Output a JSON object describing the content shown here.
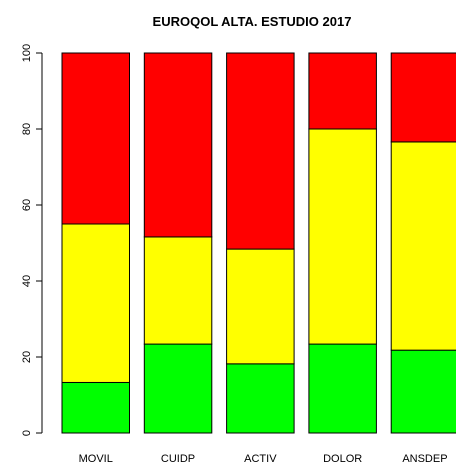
{
  "chart_data": {
    "type": "stacked_bar",
    "title": "EUROQOL ALTA. ESTUDIO 2017",
    "categories": [
      "MOVIL",
      "CUIDP",
      "ACTIV",
      "DOLOR",
      "ANSDEP"
    ],
    "series": [
      {
        "color": "#00ff00",
        "values": [
          13.3,
          23.4,
          18.2,
          23.4,
          21.8
        ]
      },
      {
        "color": "#ffff00",
        "values": [
          41.7,
          28.2,
          30.2,
          56.6,
          54.8
        ]
      },
      {
        "color": "#ff0000",
        "values": [
          45.0,
          48.4,
          51.6,
          20.0,
          23.4
        ]
      }
    ],
    "ylim": [
      0,
      100
    ],
    "yticks": [
      0,
      20,
      40,
      60,
      80,
      100
    ],
    "grid": false
  }
}
